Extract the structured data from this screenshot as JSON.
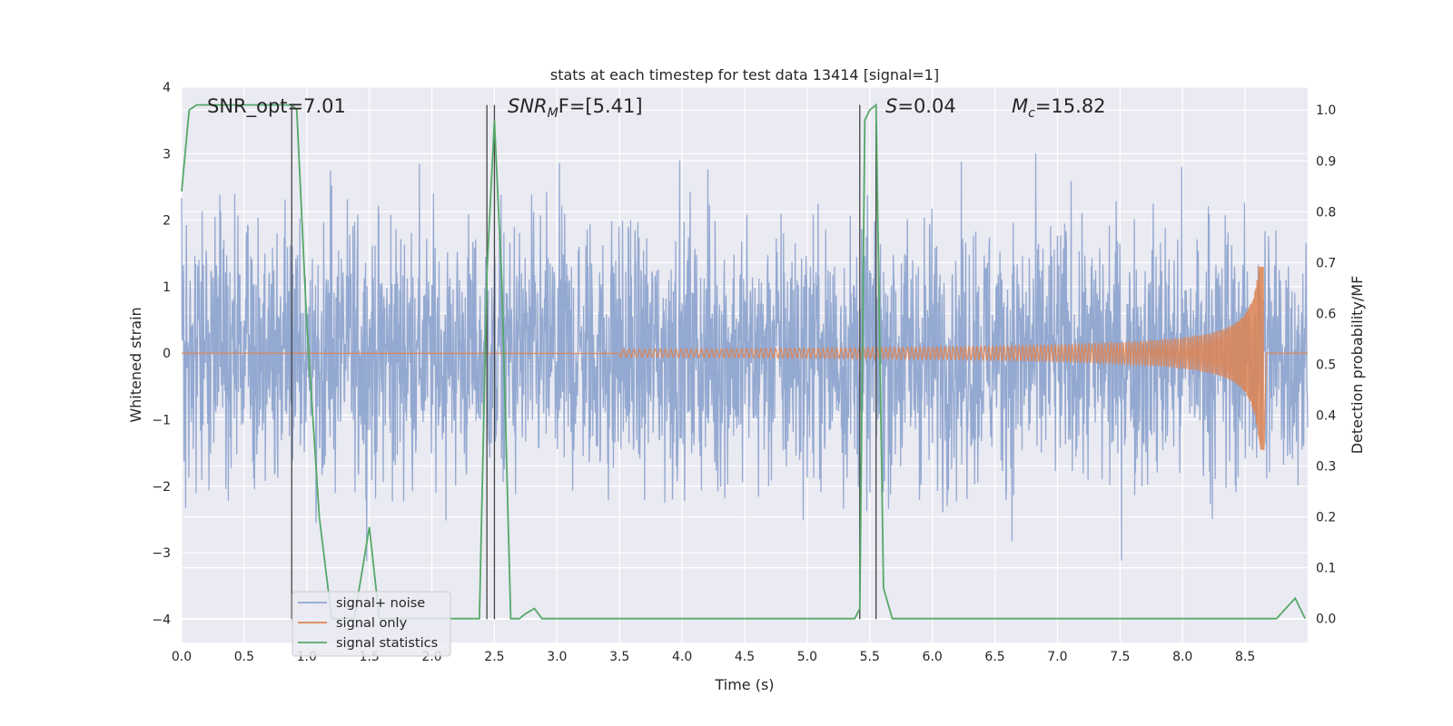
{
  "chart_data": {
    "type": "line",
    "title": "stats at each timestep for test data 13414 [signal=1]",
    "xlabel": "Time (s)",
    "ylabel": "Whitened strain",
    "ylabel_right": "Detection probability/MF",
    "xlim": [
      0,
      9.0
    ],
    "ylim": [
      -4.35,
      4.0
    ],
    "ylim_right": [
      -0.047,
      1.045
    ],
    "x_ticks": [
      0.0,
      0.5,
      1.0,
      1.5,
      2.0,
      2.5,
      3.0,
      3.5,
      4.0,
      4.5,
      5.0,
      5.5,
      6.0,
      6.5,
      7.0,
      7.5,
      8.0,
      8.5
    ],
    "x_tick_labels": [
      "0.0",
      "0.5",
      "1.0",
      "1.5",
      "2.0",
      "2.5",
      "3.0",
      "3.5",
      "4.0",
      "4.5",
      "5.0",
      "5.5",
      "6.0",
      "6.5",
      "7.0",
      "7.5",
      "8.0",
      "8.5"
    ],
    "y_ticks": [
      4,
      3,
      2,
      1,
      0,
      -1,
      -2,
      -3,
      -4
    ],
    "y_tick_labels": [
      "4",
      "3",
      "2",
      "1",
      "0",
      "−1",
      "−2",
      "−3",
      "−4"
    ],
    "y2_ticks": [
      1.0,
      0.9,
      0.8,
      0.7,
      0.6,
      0.5,
      0.4,
      0.3,
      0.2,
      0.1,
      0.0
    ],
    "y2_tick_labels": [
      "1.0",
      "0.9",
      "0.8",
      "0.7",
      "0.6",
      "0.5",
      "0.4",
      "0.3",
      "0.2",
      "0.1",
      "0.0"
    ],
    "grid": true,
    "legend_position": "lower-left",
    "annotations": {
      "snr_opt": "SNR_opt=7.01",
      "snr_mf_italic": "SNR",
      "snr_mf_sub": "M",
      "snr_mf_rest": "F=[5.41]",
      "s_italic": "S",
      "s_rest": "=0.04",
      "mc_italic": "M",
      "mc_sub": "c",
      "mc_rest": "=15.82"
    },
    "vertical_lines_x": [
      0.88,
      2.44,
      2.5,
      5.42,
      5.55
    ],
    "series": [
      {
        "name": "signal+ noise",
        "axis": "left",
        "color": "#8fa5cf",
        "description_values": "gaussian noise, 0–9 s, amplitude ±4"
      },
      {
        "name": "signal only",
        "axis": "left",
        "color": "#dd8452",
        "chirp": {
          "start_x": 3.5,
          "merger_x": 8.65,
          "peak_amplitude_up": 1.3,
          "peak_amplitude_down": -1.45
        }
      },
      {
        "name": "signal statistics",
        "axis": "right",
        "color": "#55a868",
        "x": [
          0.0,
          0.06,
          0.12,
          0.2,
          0.3,
          0.5,
          0.7,
          0.85,
          0.88,
          0.92,
          1.0,
          1.1,
          1.2,
          1.3,
          1.38,
          1.5,
          1.58,
          1.7,
          1.8,
          1.9,
          2.0,
          2.1,
          2.2,
          2.3,
          2.38,
          2.44,
          2.5,
          2.56,
          2.63,
          2.7,
          2.75,
          2.82,
          2.88,
          3.0,
          3.5,
          4.0,
          4.5,
          5.0,
          5.38,
          5.42,
          5.46,
          5.5,
          5.55,
          5.61,
          5.68,
          5.75,
          6.0,
          7.0,
          8.0,
          8.6,
          8.75,
          8.9,
          8.98
        ],
        "y": [
          0.84,
          1.0,
          1.01,
          1.01,
          1.01,
          1.01,
          1.01,
          1.01,
          1.01,
          1.0,
          0.58,
          0.2,
          0.0,
          0.0,
          0.0,
          0.18,
          0.0,
          0.0,
          0.0,
          0.0,
          0.0,
          0.0,
          0.0,
          0.0,
          0.0,
          0.68,
          0.98,
          0.66,
          0.0,
          0.0,
          0.01,
          0.02,
          0.0,
          0.0,
          0.0,
          0.0,
          0.0,
          0.0,
          0.0,
          0.02,
          0.98,
          1.0,
          1.01,
          0.06,
          0.0,
          0.0,
          0.0,
          0.0,
          0.0,
          0.0,
          0.0,
          0.04,
          0.0
        ]
      }
    ]
  }
}
